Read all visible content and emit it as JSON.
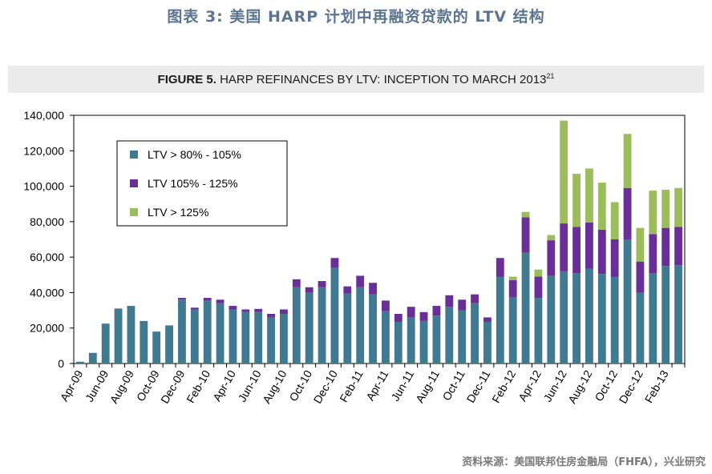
{
  "header": {
    "title": "图表 3:  美国 HARP 计划中再融资贷款的 LTV 结构"
  },
  "figure": {
    "label": "FIGURE 5.",
    "caption": "HARP REFINANCES BY LTV: INCEPTION TO MARCH 2013",
    "footnote": "21"
  },
  "source": "资料来源：美国联邦住房金融局（FHFA），兴业研究",
  "chart_data": {
    "type": "bar",
    "stacked": true,
    "ylim": [
      0,
      140000
    ],
    "y_ticks": [
      "0",
      "20,000",
      "40,000",
      "60,000",
      "80,000",
      "100,000",
      "120,000",
      "140,000"
    ],
    "categories": [
      "Apr-09",
      "May-09",
      "Jun-09",
      "Jul-09",
      "Aug-09",
      "Sep-09",
      "Oct-09",
      "Nov-09",
      "Dec-09",
      "Jan-10",
      "Feb-10",
      "Mar-10",
      "Apr-10",
      "May-10",
      "Jun-10",
      "Jul-10",
      "Aug-10",
      "Sep-10",
      "Oct-10",
      "Nov-10",
      "Dec-10",
      "Jan-11",
      "Feb-11",
      "Mar-11",
      "Apr-11",
      "May-11",
      "Jun-11",
      "Jul-11",
      "Aug-11",
      "Sep-11",
      "Oct-11",
      "Nov-11",
      "Dec-11",
      "Jan-12",
      "Feb-12",
      "Mar-12",
      "Apr-12",
      "May-12",
      "Jun-12",
      "Jul-12",
      "Aug-12",
      "Sep-12",
      "Oct-12",
      "Nov-12",
      "Dec-12",
      "Jan-13",
      "Feb-13",
      "Mar-13"
    ],
    "x_tick_labels": [
      "Apr-09",
      "Jun-09",
      "Aug-09",
      "Oct-09",
      "Dec-09",
      "Feb-10",
      "Apr-10",
      "Jun-10",
      "Aug-10",
      "Oct-10",
      "Dec-10",
      "Feb-11",
      "Apr-11",
      "Jun-11",
      "Aug-11",
      "Oct-11",
      "Dec-11",
      "Feb-12",
      "Apr-12",
      "Jun-12",
      "Aug-12",
      "Oct-12",
      "Dec-12",
      "Feb-13"
    ],
    "series": [
      {
        "name": "LTV > 80% - 105%",
        "color": "#3f7a90",
        "values": [
          1000,
          6000,
          22500,
          31000,
          32500,
          24000,
          18000,
          21500,
          36000,
          30500,
          35500,
          34000,
          30500,
          29000,
          29000,
          26000,
          28000,
          43000,
          40000,
          43000,
          54000,
          39500,
          43000,
          39000,
          29500,
          23500,
          26000,
          24000,
          27000,
          32000,
          30000,
          34000,
          23500,
          49000,
          37500,
          62500,
          37000,
          49500,
          52000,
          51000,
          53500,
          50500,
          49000,
          70000,
          40000,
          51000,
          55000,
          55500
        ]
      },
      {
        "name": "LTV 105% - 125%",
        "color": "#6a2f96",
        "values": [
          0,
          0,
          0,
          0,
          0,
          0,
          0,
          0,
          1000,
          1000,
          1500,
          2000,
          2000,
          1500,
          1800,
          2000,
          2500,
          4500,
          3000,
          3500,
          5500,
          4000,
          6500,
          6500,
          6000,
          4500,
          6000,
          5000,
          5500,
          6500,
          6000,
          5000,
          2500,
          10500,
          9500,
          20000,
          12000,
          20000,
          27000,
          26000,
          26000,
          25000,
          21000,
          29000,
          17500,
          22000,
          21500,
          21500
        ]
      },
      {
        "name": "LTV > 125%",
        "color": "#9cbd5c",
        "values": [
          0,
          0,
          0,
          0,
          0,
          0,
          0,
          0,
          0,
          0,
          0,
          0,
          0,
          0,
          0,
          0,
          0,
          0,
          0,
          0,
          0,
          0,
          0,
          0,
          0,
          0,
          0,
          0,
          0,
          0,
          0,
          0,
          0,
          0,
          2000,
          3000,
          4000,
          3000,
          58000,
          30000,
          30500,
          26500,
          21000,
          30500,
          19000,
          24500,
          21500,
          22000
        ]
      }
    ],
    "legend_position": "top-left"
  }
}
